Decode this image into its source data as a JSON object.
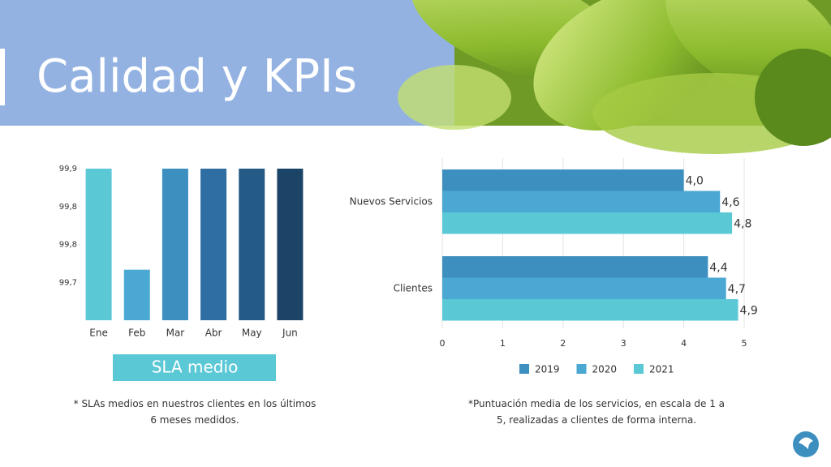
{
  "title": "Calidad y KPIs",
  "chart_data": [
    {
      "type": "bar",
      "categories": [
        "Ene",
        "Feb",
        "Mar",
        "Abr",
        "May",
        "Jun"
      ],
      "values": [
        99.9,
        99.74,
        99.9,
        99.9,
        99.9,
        99.9
      ],
      "colors": [
        "#5bc8d6",
        "#4aa8d2",
        "#3d8fc0",
        "#2f6ea3",
        "#245a86",
        "#1c4466"
      ],
      "ylim": [
        99.66,
        99.9
      ],
      "yticks": [
        {
          "value": 99.9,
          "label": "99,9"
        },
        {
          "value": 99.84,
          "label": "99,8"
        },
        {
          "value": 99.78,
          "label": "99,8"
        },
        {
          "value": 99.72,
          "label": "99,7"
        }
      ],
      "caption": "SLA medio",
      "note": "* SLAs medios en nuestros clientes en los últimos 6 meses medidos."
    },
    {
      "type": "hbar",
      "categories": [
        "Nuevos Servicios",
        "Clientes"
      ],
      "series": [
        {
          "name": "2019",
          "color": "#3d8fc0",
          "values": [
            4.0,
            4.4
          ],
          "value_labels": [
            "4,0",
            "4,4"
          ]
        },
        {
          "name": "2020",
          "color": "#4aa8d2",
          "values": [
            4.6,
            4.7
          ],
          "value_labels": [
            "4,6",
            "4,7"
          ]
        },
        {
          "name": "2021",
          "color": "#5bc8d6",
          "values": [
            4.8,
            4.9
          ],
          "value_labels": [
            "4,8",
            "4,9"
          ]
        }
      ],
      "xlim": [
        0,
        5
      ],
      "xticks": [
        0,
        1,
        2,
        3,
        4,
        5
      ],
      "grid": true,
      "legend": "bottom",
      "note": "*Puntuación media de los servicios, en escala de 1 a 5, realizadas a clientes de forma interna."
    }
  ]
}
